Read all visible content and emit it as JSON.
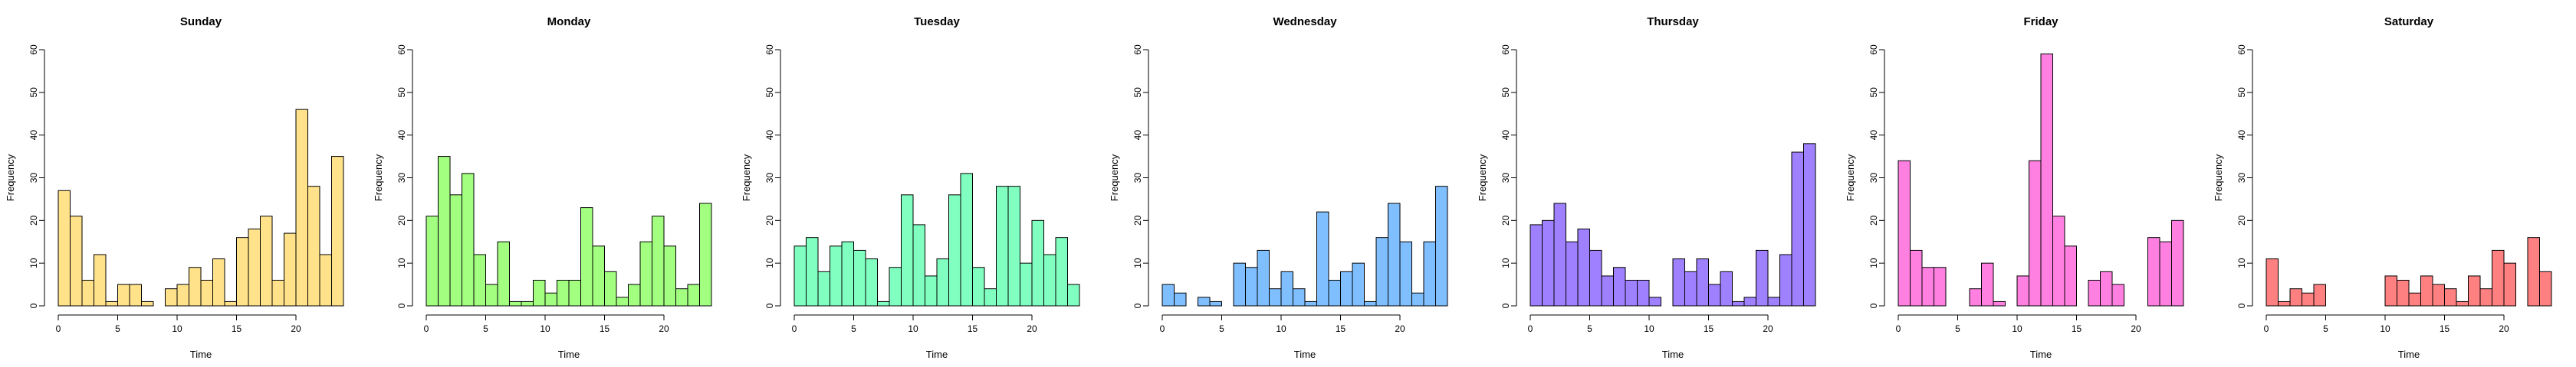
{
  "axis": {
    "xlabel": "Time",
    "ylabel": "Frequency",
    "xlim": [
      0,
      24
    ],
    "ylim": [
      0,
      60
    ],
    "xticks": [
      0,
      5,
      10,
      15,
      20
    ],
    "yticks": [
      0,
      10,
      20,
      30,
      40,
      50,
      60
    ]
  },
  "chart_data": [
    {
      "type": "bar",
      "title": "Sunday",
      "color": "#FFE28A",
      "x": [
        0,
        1,
        2,
        3,
        4,
        5,
        6,
        7,
        8,
        9,
        10,
        11,
        12,
        13,
        14,
        15,
        16,
        17,
        18,
        19,
        20,
        21,
        22,
        23
      ],
      "values": [
        27,
        21,
        6,
        12,
        1,
        5,
        5,
        1,
        0,
        4,
        5,
        9,
        6,
        11,
        1,
        16,
        18,
        21,
        6,
        17,
        46,
        28,
        12,
        35
      ]
    },
    {
      "type": "bar",
      "title": "Monday",
      "color": "#A2FF80",
      "x": [
        0,
        1,
        2,
        3,
        4,
        5,
        6,
        7,
        8,
        9,
        10,
        11,
        12,
        13,
        14,
        15,
        16,
        17,
        18,
        19,
        20,
        21,
        22,
        23
      ],
      "values": [
        21,
        35,
        26,
        31,
        12,
        5,
        15,
        1,
        1,
        6,
        3,
        6,
        6,
        23,
        14,
        8,
        2,
        5,
        15,
        21,
        14,
        4,
        5,
        24
      ]
    },
    {
      "type": "bar",
      "title": "Tuesday",
      "color": "#80FFC0",
      "x": [
        0,
        1,
        2,
        3,
        4,
        5,
        6,
        7,
        8,
        9,
        10,
        11,
        12,
        13,
        14,
        15,
        16,
        17,
        18,
        19,
        20,
        21,
        22,
        23
      ],
      "values": [
        14,
        16,
        8,
        14,
        15,
        13,
        11,
        1,
        9,
        26,
        19,
        7,
        11,
        26,
        31,
        9,
        4,
        28,
        28,
        10,
        20,
        12,
        16,
        5
      ]
    },
    {
      "type": "bar",
      "title": "Wednesday",
      "color": "#80BFFF",
      "x": [
        0,
        1,
        2,
        3,
        4,
        5,
        6,
        7,
        8,
        9,
        10,
        11,
        12,
        13,
        14,
        15,
        16,
        17,
        18,
        19,
        20,
        21,
        22,
        23
      ],
      "values": [
        5,
        3,
        0,
        2,
        1,
        0,
        10,
        9,
        13,
        4,
        8,
        4,
        1,
        22,
        6,
        8,
        10,
        1,
        16,
        24,
        15,
        3,
        15,
        28
      ]
    },
    {
      "type": "bar",
      "title": "Thursday",
      "color": "#9F80FF",
      "x": [
        0,
        1,
        2,
        3,
        4,
        5,
        6,
        7,
        8,
        9,
        10,
        11,
        12,
        13,
        14,
        15,
        16,
        17,
        18,
        19,
        20,
        21,
        22,
        23
      ],
      "values": [
        19,
        20,
        24,
        15,
        18,
        13,
        7,
        9,
        6,
        6,
        2,
        0,
        11,
        8,
        11,
        5,
        8,
        1,
        2,
        13,
        2,
        12,
        36,
        38
      ]
    },
    {
      "type": "bar",
      "title": "Friday",
      "color": "#FF80E0",
      "x": [
        0,
        1,
        2,
        3,
        4,
        5,
        6,
        7,
        8,
        9,
        10,
        11,
        12,
        13,
        14,
        15,
        16,
        17,
        18,
        19,
        20,
        21,
        22,
        23
      ],
      "values": [
        34,
        13,
        9,
        9,
        0,
        0,
        4,
        10,
        1,
        0,
        7,
        34,
        59,
        21,
        14,
        0,
        6,
        8,
        5,
        0,
        0,
        16,
        15,
        20
      ]
    },
    {
      "type": "bar",
      "title": "Saturday",
      "color": "#FF8080",
      "x": [
        0,
        1,
        2,
        3,
        4,
        5,
        6,
        7,
        8,
        9,
        10,
        11,
        12,
        13,
        14,
        15,
        16,
        17,
        18,
        19,
        20,
        21,
        22,
        23
      ],
      "values": [
        11,
        1,
        4,
        3,
        5,
        0,
        0,
        0,
        0,
        0,
        7,
        6,
        3,
        7,
        5,
        4,
        1,
        7,
        4,
        13,
        10,
        0,
        16,
        8
      ]
    }
  ]
}
